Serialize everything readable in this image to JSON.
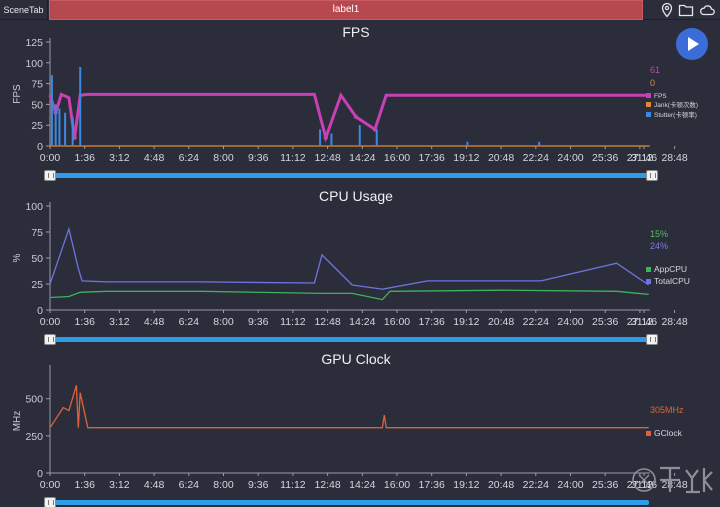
{
  "topbar": {
    "scene_tab": "SceneTab",
    "label": "label1",
    "icons": [
      "location-pin-icon",
      "folder-icon",
      "cloud-icon"
    ]
  },
  "play_button": {
    "icon": "play-icon"
  },
  "x_ticks": [
    "0:00",
    "1:36",
    "3:12",
    "4:48",
    "6:24",
    "8:00",
    "9:36",
    "11:12",
    "12:48",
    "14:24",
    "16:00",
    "17:36",
    "19:12",
    "20:48",
    "22:24",
    "24:00",
    "25:36",
    "27:12",
    "28:48",
    "31:46"
  ],
  "charts": [
    {
      "title": "FPS",
      "ylabel": "FPS",
      "yticks": [
        "0",
        "25",
        "50",
        "75",
        "100",
        "125"
      ],
      "current": [
        {
          "text": "61",
          "color": "#c840b4"
        },
        {
          "text": "0",
          "color": "#e08a30"
        }
      ],
      "legend": [
        {
          "label": "FPS",
          "color": "#c840b4"
        },
        {
          "label": "Jank(卡顿次数)",
          "color": "#e08a30"
        },
        {
          "label": "Stutter(卡顿率)",
          "color": "#3c8ae0"
        }
      ]
    },
    {
      "title": "CPU Usage",
      "ylabel": "%",
      "yticks": [
        "0",
        "25",
        "50",
        "75",
        "100"
      ],
      "current": [
        {
          "text": "15%",
          "color": "#4cc060"
        },
        {
          "text": "24%",
          "color": "#7a7ee8"
        }
      ],
      "legend": [
        {
          "label": "AppCPU",
          "color": "#3cb45a"
        },
        {
          "label": "TotalCPU",
          "color": "#6e74e0"
        }
      ]
    },
    {
      "title": "GPU Clock",
      "ylabel": "MHz",
      "yticks": [
        "0",
        "250",
        "500"
      ],
      "current": [
        {
          "text": "305MHz",
          "color": "#e0603c"
        }
      ],
      "legend": [
        {
          "label": "GClock",
          "color": "#e0603c"
        }
      ]
    }
  ],
  "chart_data": [
    {
      "type": "line",
      "title": "FPS",
      "ylabel": "FPS",
      "ylim": [
        0,
        125
      ],
      "x_range": [
        "0:00",
        "31:46"
      ],
      "series": [
        {
          "name": "FPS",
          "x_min": [
            0,
            0.3,
            0.6,
            1.0,
            1.3,
            1.6,
            2.0,
            3,
            8,
            14,
            14.6,
            15.4,
            16.2,
            17.2,
            17.8,
            22,
            26,
            31.7
          ],
          "values": [
            61,
            40,
            62,
            58,
            10,
            61,
            62,
            62,
            62,
            62,
            10,
            61,
            35,
            20,
            61,
            61,
            61,
            61
          ]
        },
        {
          "name": "Jank(卡顿次数)",
          "x_min": [
            0,
            31.7
          ],
          "values": [
            0,
            0
          ]
        },
        {
          "name": "Stutter(卡顿率)",
          "x_min": [
            0.1,
            0.3,
            0.5,
            0.8,
            1.2,
            1.6,
            14.3,
            14.9,
            16.4,
            17.3,
            22.1,
            25.9
          ],
          "values": [
            85,
            50,
            45,
            40,
            35,
            95,
            20,
            15,
            25,
            20,
            5,
            5
          ]
        }
      ]
    },
    {
      "type": "line",
      "title": "CPU Usage",
      "ylabel": "%",
      "ylim": [
        0,
        100
      ],
      "x_range": [
        "0:00",
        "31:46"
      ],
      "series": [
        {
          "name": "AppCPU",
          "x_min": [
            0,
            1,
            1.6,
            3,
            8,
            14.4,
            16,
            17.6,
            18,
            24,
            30,
            31.7
          ],
          "values": [
            12,
            13,
            17,
            18,
            18,
            16,
            16,
            10,
            18,
            19,
            18,
            15
          ]
        },
        {
          "name": "TotalCPU",
          "x_min": [
            0,
            1,
            1.5,
            1.7,
            3,
            8,
            14,
            14.4,
            16,
            17.6,
            20,
            26,
            30,
            31.7
          ],
          "values": [
            25,
            78,
            40,
            28,
            27,
            27,
            26,
            53,
            24,
            20,
            28,
            28,
            45,
            24
          ]
        }
      ]
    },
    {
      "type": "line",
      "title": "GPU Clock",
      "ylabel": "MHz",
      "ylim": [
        0,
        700
      ],
      "x_range": [
        "0:00",
        "31:46"
      ],
      "series": [
        {
          "name": "GClock",
          "x_min": [
            0,
            0.7,
            1.0,
            1.4,
            1.5,
            1.6,
            2,
            17.6,
            17.7,
            17.8,
            31.7
          ],
          "values": [
            305,
            440,
            420,
            590,
            305,
            540,
            305,
            305,
            390,
            305,
            305
          ]
        }
      ]
    }
  ]
}
